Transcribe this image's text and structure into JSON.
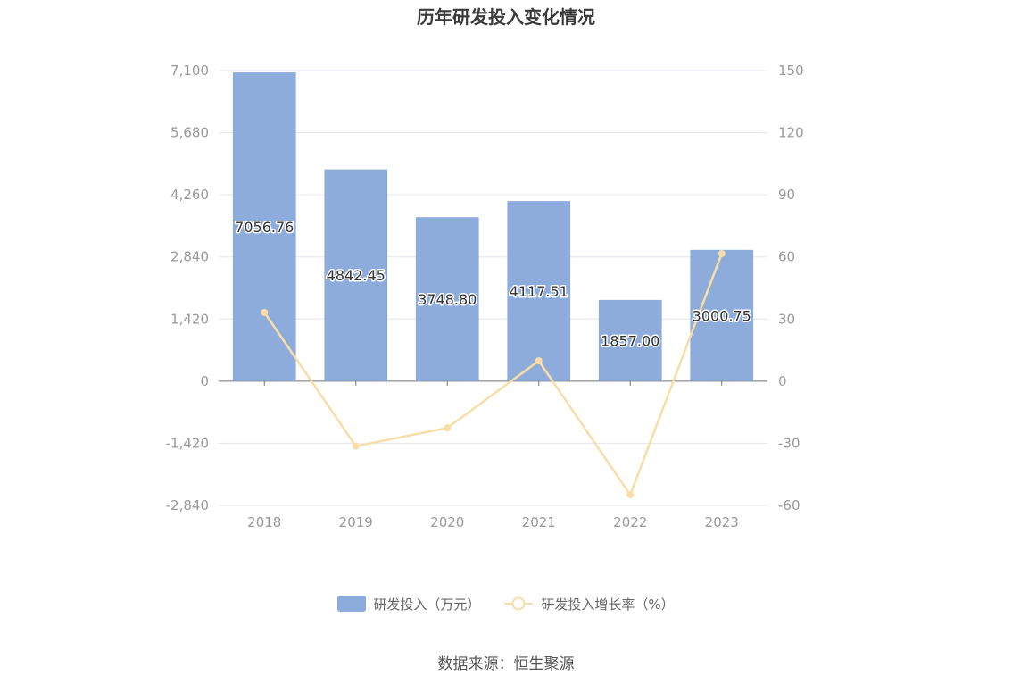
{
  "title": "历年研发投入变化情况",
  "source": "数据来源：恒生聚源",
  "colors": {
    "bar": "#8eacdb",
    "line": "#f9dda6",
    "grid": "#e2e6f0",
    "axis": "#999999",
    "axis_line": "#6e7079"
  },
  "chart_data": {
    "type": "bar",
    "categories": [
      "2018",
      "2019",
      "2020",
      "2021",
      "2022",
      "2023"
    ],
    "series": [
      {
        "name": "研发投入（万元）",
        "type": "bar",
        "axis": "left",
        "values": [
          7056.76,
          4842.45,
          3748.8,
          4117.51,
          1857.0,
          3000.75
        ],
        "labels": [
          "7056.76",
          "4842.45",
          "3748.80",
          "4117.51",
          "1857.00",
          "3000.75"
        ]
      },
      {
        "name": "研发投入增长率（%）",
        "type": "line",
        "axis": "right",
        "values": [
          33.2,
          -31.4,
          -22.6,
          9.8,
          -54.9,
          61.6
        ]
      }
    ],
    "y_left": {
      "ticks": [
        7100,
        5680,
        4260,
        2840,
        1420,
        0,
        -1420,
        -2840
      ],
      "tick_labels": [
        "7,100",
        "5,680",
        "4,260",
        "2,840",
        "1,420",
        "0",
        "-1,420",
        "-2,840"
      ],
      "range": [
        -2840,
        7100
      ]
    },
    "y_right": {
      "ticks": [
        150,
        120,
        90,
        60,
        30,
        0,
        -30,
        -60
      ],
      "tick_labels": [
        "150",
        "120",
        "90",
        "60",
        "30",
        "0",
        "-30",
        "-60"
      ],
      "range": [
        -60,
        150
      ]
    },
    "grid": true,
    "legend_position": "bottom-center"
  }
}
